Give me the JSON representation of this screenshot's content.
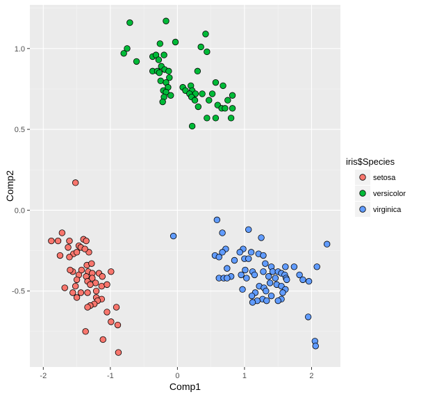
{
  "chart_data": {
    "type": "scatter",
    "title": "",
    "xlabel": "Comp1",
    "ylabel": "Comp2",
    "xlim": [
      -2.2,
      2.43
    ],
    "ylim": [
      -0.97,
      1.27
    ],
    "x_ticks": [
      -2,
      -1,
      0,
      1,
      2
    ],
    "x_tick_labels": [
      "-2",
      "-1",
      "0",
      "1",
      "2"
    ],
    "y_ticks": [
      -0.5,
      0.0,
      0.5,
      1.0
    ],
    "y_tick_labels": [
      "-0.5",
      "0.0",
      "0.5",
      "1.0"
    ],
    "grid": true,
    "background": "#ebebeb",
    "legend": {
      "title": "iris$Species",
      "position": "right"
    },
    "series": [
      {
        "name": "setosa",
        "color": "#f8766d",
        "points": [
          [
            -1.52,
            0.17
          ],
          [
            -1.88,
            -0.19
          ],
          [
            -1.72,
            -0.14
          ],
          [
            -1.61,
            -0.19
          ],
          [
            -1.78,
            -0.19
          ],
          [
            -1.55,
            -0.27
          ],
          [
            -1.4,
            -0.18
          ],
          [
            -1.47,
            -0.22
          ],
          [
            -1.36,
            -0.19
          ],
          [
            -1.32,
            -0.26
          ],
          [
            -1.75,
            -0.28
          ],
          [
            -1.63,
            -0.23
          ],
          [
            -1.5,
            -0.26
          ],
          [
            -1.44,
            -0.23
          ],
          [
            -1.38,
            -0.24
          ],
          [
            -1.61,
            -0.29
          ],
          [
            -1.35,
            -0.34
          ],
          [
            -1.28,
            -0.33
          ],
          [
            -1.56,
            -0.38
          ],
          [
            -1.47,
            -0.4
          ],
          [
            -1.33,
            -0.38
          ],
          [
            -1.27,
            -0.39
          ],
          [
            -1.6,
            -0.37
          ],
          [
            -1.43,
            -0.37
          ],
          [
            -1.36,
            -0.41
          ],
          [
            -1.17,
            -0.39
          ],
          [
            -1.12,
            -0.41
          ],
          [
            -0.99,
            -0.38
          ],
          [
            -1.5,
            -0.43
          ],
          [
            -1.34,
            -0.44
          ],
          [
            -1.27,
            -0.42
          ],
          [
            -1.22,
            -0.45
          ],
          [
            -1.13,
            -0.47
          ],
          [
            -1.52,
            -0.47
          ],
          [
            -1.68,
            -0.48
          ],
          [
            -1.3,
            -0.46
          ],
          [
            -1.05,
            -0.46
          ],
          [
            -1.56,
            -0.51
          ],
          [
            -1.44,
            -0.51
          ],
          [
            -1.34,
            -0.51
          ],
          [
            -1.21,
            -0.5
          ],
          [
            -1.5,
            -0.54
          ],
          [
            -1.21,
            -0.54
          ],
          [
            -1.13,
            -0.55
          ],
          [
            -1.19,
            -0.56
          ],
          [
            -1.24,
            -0.58
          ],
          [
            -1.3,
            -0.59
          ],
          [
            -1.34,
            -0.6
          ],
          [
            -0.91,
            -0.6
          ],
          [
            -1.05,
            -0.63
          ],
          [
            -0.99,
            -0.69
          ],
          [
            -0.89,
            -0.71
          ],
          [
            -1.37,
            -0.75
          ],
          [
            -1.11,
            -0.8
          ],
          [
            -0.88,
            -0.88
          ]
        ]
      },
      {
        "name": "versicolor",
        "color": "#00ba38",
        "points": [
          [
            -0.71,
            1.16
          ],
          [
            -0.17,
            1.17
          ],
          [
            0.42,
            1.09
          ],
          [
            -0.75,
            1.0
          ],
          [
            -0.8,
            0.97
          ],
          [
            -0.61,
            0.92
          ],
          [
            -0.26,
            1.03
          ],
          [
            -0.03,
            1.04
          ],
          [
            0.35,
            1.01
          ],
          [
            0.44,
            0.98
          ],
          [
            -0.37,
            0.95
          ],
          [
            -0.32,
            0.96
          ],
          [
            -0.28,
            0.93
          ],
          [
            -0.2,
            0.96
          ],
          [
            -0.24,
            0.89
          ],
          [
            -0.37,
            0.86
          ],
          [
            -0.3,
            0.86
          ],
          [
            -0.27,
            0.85
          ],
          [
            -0.19,
            0.87
          ],
          [
            -0.13,
            0.86
          ],
          [
            0.3,
            0.86
          ],
          [
            -0.25,
            0.8
          ],
          [
            -0.12,
            0.82
          ],
          [
            -0.17,
            0.79
          ],
          [
            0.57,
            0.79
          ],
          [
            -0.14,
            0.76
          ],
          [
            0.08,
            0.76
          ],
          [
            0.2,
            0.77
          ],
          [
            0.68,
            0.77
          ],
          [
            -0.21,
            0.74
          ],
          [
            -0.17,
            0.73
          ],
          [
            0.12,
            0.74
          ],
          [
            0.22,
            0.74
          ],
          [
            -0.2,
            0.7
          ],
          [
            -0.1,
            0.71
          ],
          [
            0.18,
            0.72
          ],
          [
            0.27,
            0.72
          ],
          [
            0.37,
            0.72
          ],
          [
            0.52,
            0.72
          ],
          [
            0.82,
            0.71
          ],
          [
            -0.22,
            0.67
          ],
          [
            0.21,
            0.7
          ],
          [
            0.26,
            0.68
          ],
          [
            0.47,
            0.68
          ],
          [
            0.75,
            0.68
          ],
          [
            0.6,
            0.65
          ],
          [
            0.31,
            0.64
          ],
          [
            0.66,
            0.63
          ],
          [
            0.71,
            0.63
          ],
          [
            0.82,
            0.63
          ],
          [
            0.44,
            0.57
          ],
          [
            0.57,
            0.57
          ],
          [
            0.8,
            0.57
          ],
          [
            0.22,
            0.52
          ]
        ]
      },
      {
        "name": "virginica",
        "color": "#619cff",
        "points": [
          [
            0.59,
            -0.06
          ],
          [
            1.06,
            -0.12
          ],
          [
            0.67,
            -0.14
          ],
          [
            -0.06,
            -0.16
          ],
          [
            1.25,
            -0.17
          ],
          [
            0.98,
            -0.24
          ],
          [
            2.23,
            -0.21
          ],
          [
            0.72,
            -0.24
          ],
          [
            0.93,
            -0.26
          ],
          [
            1.1,
            -0.26
          ],
          [
            1.21,
            -0.27
          ],
          [
            1.28,
            -0.28
          ],
          [
            0.56,
            -0.28
          ],
          [
            0.67,
            -0.26
          ],
          [
            0.62,
            -0.29
          ],
          [
            1.0,
            -0.3
          ],
          [
            1.06,
            -0.3
          ],
          [
            0.85,
            -0.31
          ],
          [
            1.31,
            -0.33
          ],
          [
            1.4,
            -0.35
          ],
          [
            1.61,
            -0.35
          ],
          [
            1.74,
            -0.35
          ],
          [
            0.74,
            -0.36
          ],
          [
            2.08,
            -0.35
          ],
          [
            1.01,
            -0.37
          ],
          [
            1.12,
            -0.38
          ],
          [
            1.28,
            -0.38
          ],
          [
            1.42,
            -0.38
          ],
          [
            1.5,
            -0.38
          ],
          [
            1.55,
            -0.39
          ],
          [
            1.6,
            -0.4
          ],
          [
            1.82,
            -0.4
          ],
          [
            0.8,
            -0.41
          ],
          [
            0.95,
            -0.4
          ],
          [
            1.15,
            -0.4
          ],
          [
            1.36,
            -0.41
          ],
          [
            1.46,
            -0.42
          ],
          [
            1.62,
            -0.42
          ],
          [
            0.62,
            -0.42
          ],
          [
            0.69,
            -0.42
          ],
          [
            0.74,
            -0.42
          ],
          [
            1.03,
            -0.42
          ],
          [
            1.63,
            -0.43
          ],
          [
            1.87,
            -0.43
          ],
          [
            1.96,
            -0.44
          ],
          [
            1.38,
            -0.45
          ],
          [
            1.22,
            -0.47
          ],
          [
            1.48,
            -0.46
          ],
          [
            1.55,
            -0.47
          ],
          [
            1.61,
            -0.49
          ],
          [
            0.97,
            -0.49
          ],
          [
            1.29,
            -0.48
          ],
          [
            1.32,
            -0.5
          ],
          [
            1.16,
            -0.51
          ],
          [
            1.57,
            -0.51
          ],
          [
            1.11,
            -0.53
          ],
          [
            1.4,
            -0.53
          ],
          [
            1.55,
            -0.55
          ],
          [
            1.27,
            -0.55
          ],
          [
            1.19,
            -0.56
          ],
          [
            1.33,
            -0.56
          ],
          [
            1.12,
            -0.57
          ],
          [
            1.5,
            -0.56
          ],
          [
            1.95,
            -0.66
          ],
          [
            2.05,
            -0.81
          ],
          [
            2.06,
            -0.84
          ]
        ]
      }
    ]
  }
}
